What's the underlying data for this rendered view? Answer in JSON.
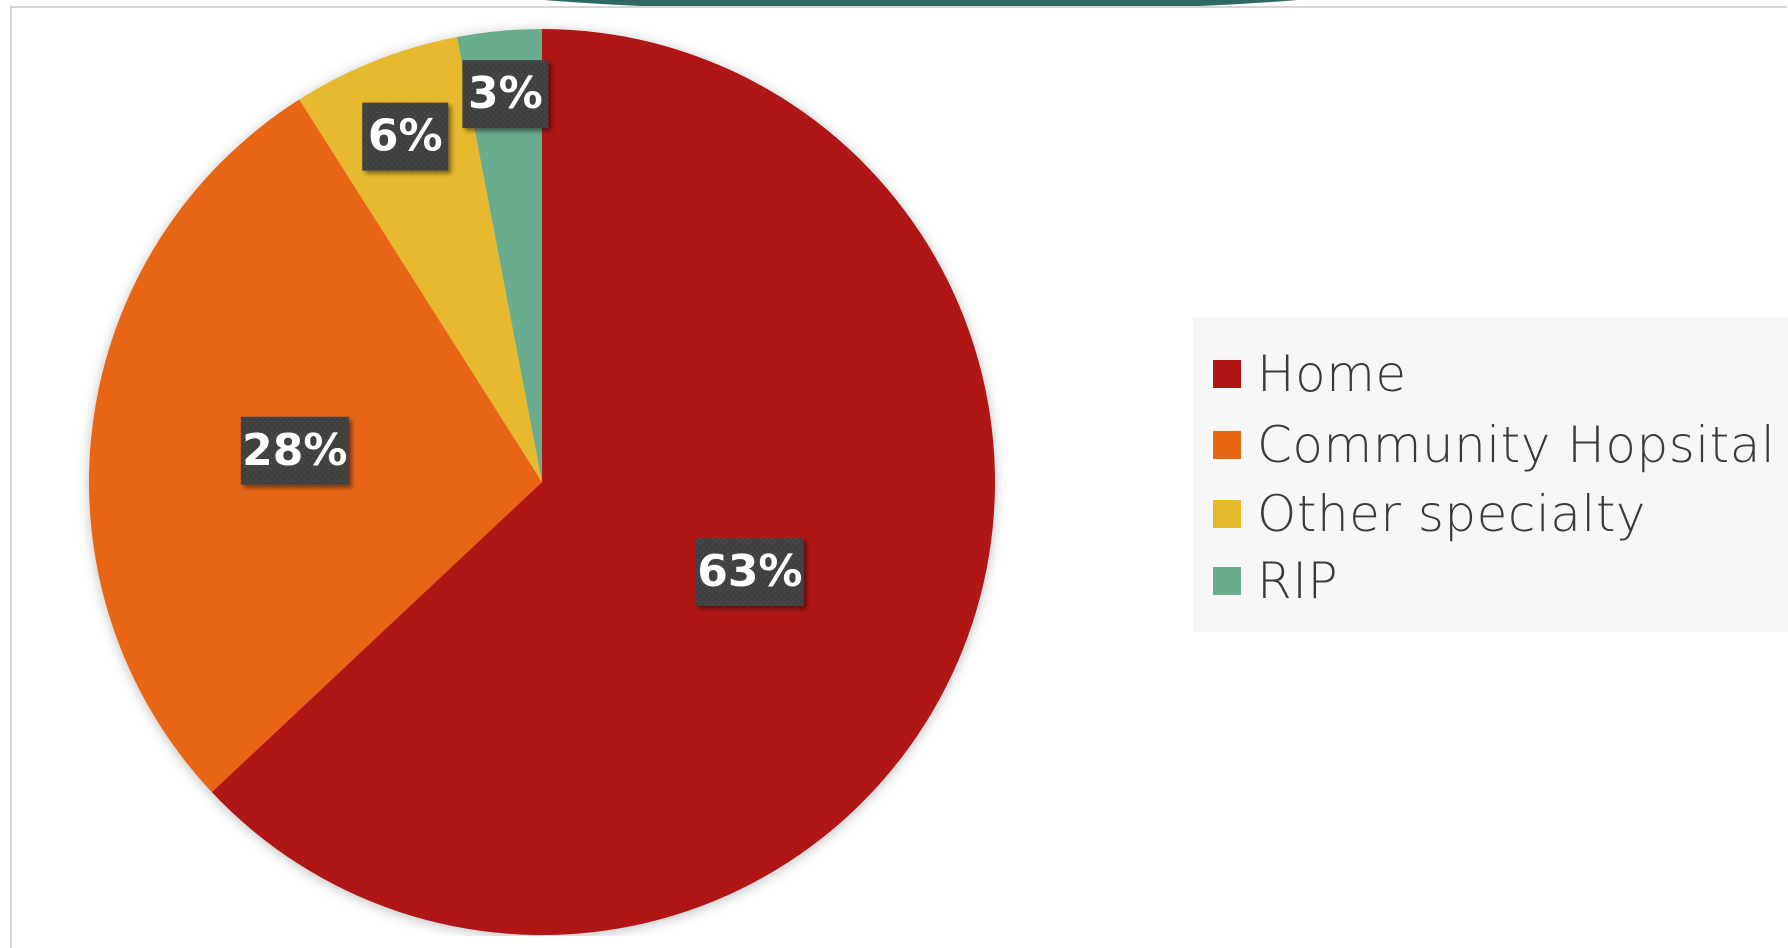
{
  "chart_data": {
    "type": "pie",
    "title": "",
    "slices": [
      {
        "label": "Home",
        "value": 63,
        "display": "63%",
        "color": "#b01513"
      },
      {
        "label": "Community Hopsital",
        "value": 28,
        "display": "28%",
        "color": "#e86514"
      },
      {
        "label": "Other specialty",
        "value": 6,
        "display": "6%",
        "color": "#e7b92d"
      },
      {
        "label": "RIP",
        "value": 3,
        "display": "3%",
        "color": "#69ad8e"
      }
    ],
    "legend_position": "right",
    "data_label_style": "dark box"
  },
  "legend": {
    "items": [
      {
        "label": "Home",
        "color": "#b01513"
      },
      {
        "label": "Community Hopsital",
        "color": "#e86514"
      },
      {
        "label": "Other specialty",
        "color": "#e7b92d"
      },
      {
        "label": "RIP",
        "color": "#69ad8e"
      }
    ]
  },
  "accent_color": "#2e6a62"
}
